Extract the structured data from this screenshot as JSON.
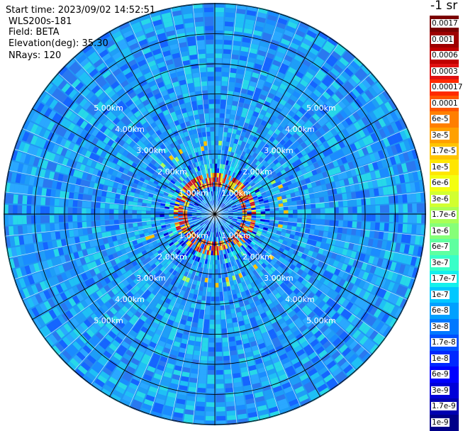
{
  "info": {
    "start_time": "Start time: 2023/09/02 14:52:51",
    "instrument": "WLS200s-181",
    "field": "Field: BETA",
    "elevation": "Elevation(deg): 35.30",
    "nrays": "NRays: 120"
  },
  "ring_labels": [
    "1.00km",
    "2.00km",
    "3.00km",
    "4.00km",
    "5.00km"
  ],
  "colorbar": {
    "unit_label": "-1 sr",
    "labels": [
      "0.0017",
      "0.001",
      "0.0006",
      "0.0003",
      "0.00017",
      "0.0001",
      "6e-5",
      "3e-5",
      "1.7e-5",
      "1e-5",
      "6e-6",
      "3e-6",
      "1.7e-6",
      "1e-6",
      "6e-7",
      "3e-7",
      "1.7e-7",
      "1e-7",
      "6e-8",
      "3e-8",
      "1.7e-8",
      "1e-8",
      "6e-9",
      "3e-9",
      "1.7e-9",
      "1e-9"
    ],
    "colors": [
      "#7a0000",
      "#9e0000",
      "#c00000",
      "#e01010",
      "#ff2a00",
      "#ff5500",
      "#ff7f00",
      "#ffa000",
      "#ffc400",
      "#ffe600",
      "#f4ff10",
      "#d2ff30",
      "#aaff55",
      "#86ff78",
      "#5effa0",
      "#38ffc8",
      "#14f0ec",
      "#00c8ff",
      "#00a0ff",
      "#0078ff",
      "#0050ff",
      "#0028ff",
      "#0000ff",
      "#0000d8",
      "#0000b0",
      "#000088"
    ]
  }
}
